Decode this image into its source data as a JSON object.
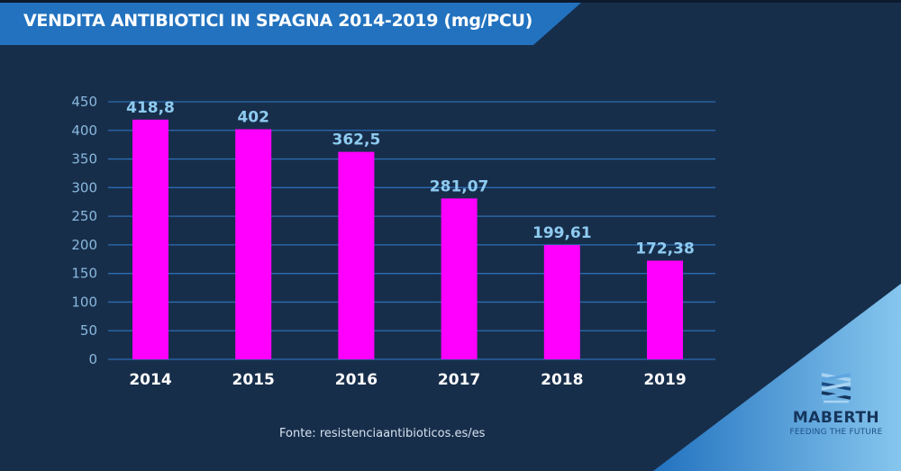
{
  "header": {
    "title": "VENDITA ANTIBIOTICI IN SPAGNA 2014-2019 (mg/PCU)"
  },
  "footer": {
    "source": "Fonte: resistenciaantibioticos.es/es"
  },
  "brand": {
    "name": "MABERTH",
    "tagline": "FEEDING THE FUTURE",
    "logo_icon": "woven-strands-icon"
  },
  "colors": {
    "background": "#172e4b",
    "banner": "#2272bf",
    "bar": "#ff00ff",
    "grid": "#2c6cb0",
    "data_label": "#8ecbf0",
    "corner_gradient_start": "#2272bf",
    "corner_gradient_end": "#86c6ee"
  },
  "chart_data": {
    "type": "bar",
    "title": "VENDITA ANTIBIOTICI IN SPAGNA 2014-2019 (mg/PCU)",
    "xlabel": "",
    "ylabel": "",
    "categories": [
      "2014",
      "2015",
      "2016",
      "2017",
      "2018",
      "2019"
    ],
    "values": [
      418.8,
      402,
      362.5,
      281.07,
      199.61,
      172.38
    ],
    "data_labels": [
      "418,8",
      "402",
      "362,5",
      "281,07",
      "199,61",
      "172,38"
    ],
    "ylim": [
      0,
      450
    ],
    "yticks": [
      0,
      50,
      100,
      150,
      200,
      250,
      300,
      350,
      400,
      450
    ],
    "ytick_labels": [
      "0",
      "50",
      "100",
      "150",
      "200",
      "250",
      "300",
      "350",
      "400",
      "450"
    ],
    "grid": true,
    "legend": "none"
  }
}
